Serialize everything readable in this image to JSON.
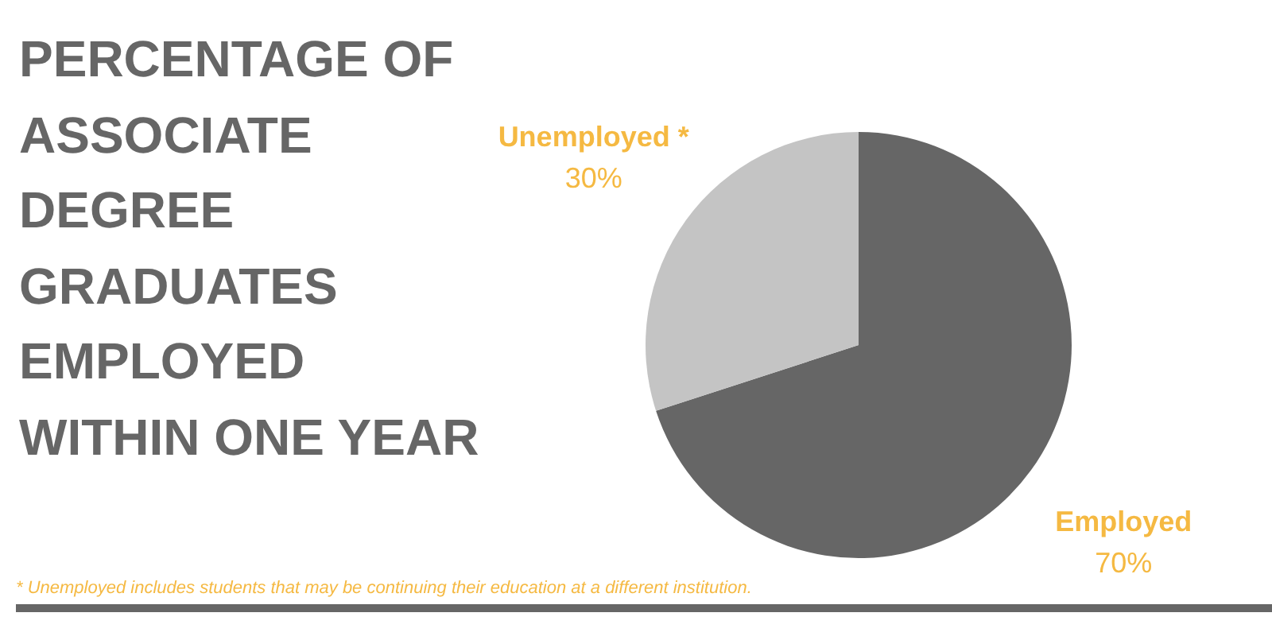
{
  "chart_data": {
    "type": "pie",
    "title": "PERCENTAGE OF ASSOCIATE DEGREE GRADUATES EMPLOYED WITHIN ONE YEAR",
    "categories": [
      "Employed",
      "Unemployed *"
    ],
    "values": [
      70,
      30
    ],
    "value_labels": [
      "70%",
      "30%"
    ],
    "colors": [
      "#666666",
      "#c4c4c4"
    ],
    "annotations": [
      "* Unemployed includes students that may be continuing their education at a different institution."
    ]
  }
}
